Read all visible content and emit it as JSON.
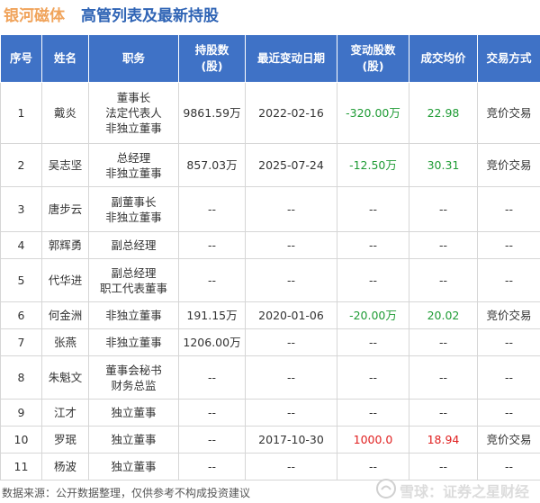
{
  "header": {
    "company": "银河磁体",
    "title": "高管列表及最新持股"
  },
  "columns": [
    "序号",
    "姓名",
    "职务",
    "持股数\n(股)",
    "最近变动日期",
    "变动股数\n(股)",
    "成交均价",
    "交易方式"
  ],
  "rows": [
    {
      "no": "1",
      "name": "戴炎",
      "roles": [
        "董事长",
        "法定代表人",
        "非独立董事"
      ],
      "shares": "9861.59万",
      "date": "2022-02-16",
      "change": "-320.00万",
      "change_dir": "neg",
      "price": "22.98",
      "price_dir": "neg",
      "method": "竞价交易"
    },
    {
      "no": "2",
      "name": "吴志坚",
      "roles": [
        "总经理",
        "非独立董事"
      ],
      "shares": "857.03万",
      "date": "2025-07-24",
      "change": "-12.50万",
      "change_dir": "neg",
      "price": "30.31",
      "price_dir": "neg",
      "method": "竞价交易"
    },
    {
      "no": "3",
      "name": "唐步云",
      "roles": [
        "副董事长",
        "非独立董事"
      ],
      "shares": "--",
      "date": "--",
      "change": "--",
      "change_dir": "",
      "price": "--",
      "price_dir": "",
      "method": "--"
    },
    {
      "no": "4",
      "name": "郭辉勇",
      "roles": [
        "副总经理"
      ],
      "shares": "--",
      "date": "--",
      "change": "--",
      "change_dir": "",
      "price": "--",
      "price_dir": "",
      "method": "--"
    },
    {
      "no": "5",
      "name": "代华进",
      "roles": [
        "副总经理",
        "职工代表董事"
      ],
      "shares": "--",
      "date": "--",
      "change": "--",
      "change_dir": "",
      "price": "--",
      "price_dir": "",
      "method": "--"
    },
    {
      "no": "6",
      "name": "何金洲",
      "roles": [
        "非独立董事"
      ],
      "shares": "191.15万",
      "date": "2020-01-06",
      "change": "-20.00万",
      "change_dir": "neg",
      "price": "20.02",
      "price_dir": "neg",
      "method": "竞价交易"
    },
    {
      "no": "7",
      "name": "张燕",
      "roles": [
        "非独立董事"
      ],
      "shares": "1206.00万",
      "date": "--",
      "change": "--",
      "change_dir": "",
      "price": "--",
      "price_dir": "",
      "method": "--"
    },
    {
      "no": "8",
      "name": "朱魁文",
      "roles": [
        "董事会秘书",
        "财务总监"
      ],
      "shares": "--",
      "date": "--",
      "change": "--",
      "change_dir": "",
      "price": "--",
      "price_dir": "",
      "method": "--"
    },
    {
      "no": "9",
      "name": "江才",
      "roles": [
        "独立董事"
      ],
      "shares": "--",
      "date": "--",
      "change": "--",
      "change_dir": "",
      "price": "--",
      "price_dir": "",
      "method": "--"
    },
    {
      "no": "10",
      "name": "罗珉",
      "roles": [
        "独立董事"
      ],
      "shares": "--",
      "date": "2017-10-30",
      "change": "1000.0",
      "change_dir": "pos",
      "price": "18.94",
      "price_dir": "pos",
      "method": "竞价交易"
    },
    {
      "no": "11",
      "name": "杨波",
      "roles": [
        "独立董事"
      ],
      "shares": "--",
      "date": "--",
      "change": "--",
      "change_dir": "",
      "price": "--",
      "price_dir": "",
      "method": "--"
    }
  ],
  "row_heights": [],
  "footer": {
    "source": "数据来源：公开数据整理，仅供参考不构成投资建议",
    "watermark": "雪球：证券之星财经"
  }
}
